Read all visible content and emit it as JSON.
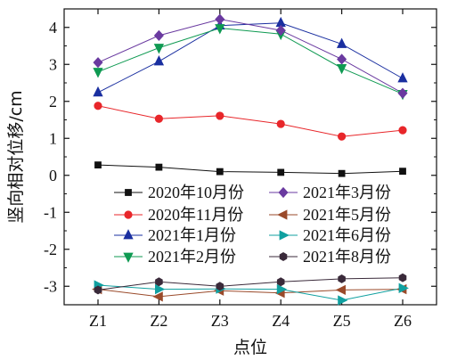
{
  "chart_data": {
    "type": "line",
    "xlabel": "点位",
    "ylabel": "竖向相对位移/cm",
    "categories": [
      "Z1",
      "Z2",
      "Z3",
      "Z4",
      "Z5",
      "Z6"
    ],
    "ylim": [
      -3.5,
      4.5
    ],
    "yticks": [
      4,
      3,
      2,
      1,
      0,
      -1,
      -2,
      -3
    ],
    "legend_position": "center-bottom",
    "series": [
      {
        "name": "2020年10月份",
        "color": "#111111",
        "marker": "square",
        "values": [
          0.28,
          0.22,
          0.1,
          0.08,
          0.05,
          0.11
        ]
      },
      {
        "name": "2020年11月份",
        "color": "#e8262a",
        "marker": "circle",
        "values": [
          1.88,
          1.53,
          1.61,
          1.39,
          1.05,
          1.22
        ]
      },
      {
        "name": "2021年1月份",
        "color": "#1a2fa0",
        "marker": "triangle-up",
        "values": [
          2.24,
          3.08,
          4.05,
          4.12,
          3.55,
          2.62
        ]
      },
      {
        "name": "2021年2月份",
        "color": "#0f9a52",
        "marker": "triangle-down",
        "values": [
          2.8,
          3.45,
          3.98,
          3.82,
          2.9,
          2.2
        ]
      },
      {
        "name": "2021年3月份",
        "color": "#6a3aa0",
        "marker": "diamond",
        "values": [
          3.05,
          3.78,
          4.22,
          3.92,
          3.14,
          2.22
        ]
      },
      {
        "name": "2021年5月份",
        "color": "#9a4a2a",
        "marker": "triangle-left",
        "values": [
          -3.08,
          -3.28,
          -3.12,
          -3.18,
          -3.1,
          -3.08
        ]
      },
      {
        "name": "2021年6月份",
        "color": "#10a0a0",
        "marker": "triangle-right",
        "values": [
          -2.97,
          -3.08,
          -3.07,
          -3.08,
          -3.38,
          -3.05
        ]
      },
      {
        "name": "2021年8月份",
        "color": "#3a2a3a",
        "marker": "hexagon",
        "values": [
          -3.1,
          -2.88,
          -3.0,
          -2.88,
          -2.8,
          -2.77
        ]
      }
    ]
  }
}
